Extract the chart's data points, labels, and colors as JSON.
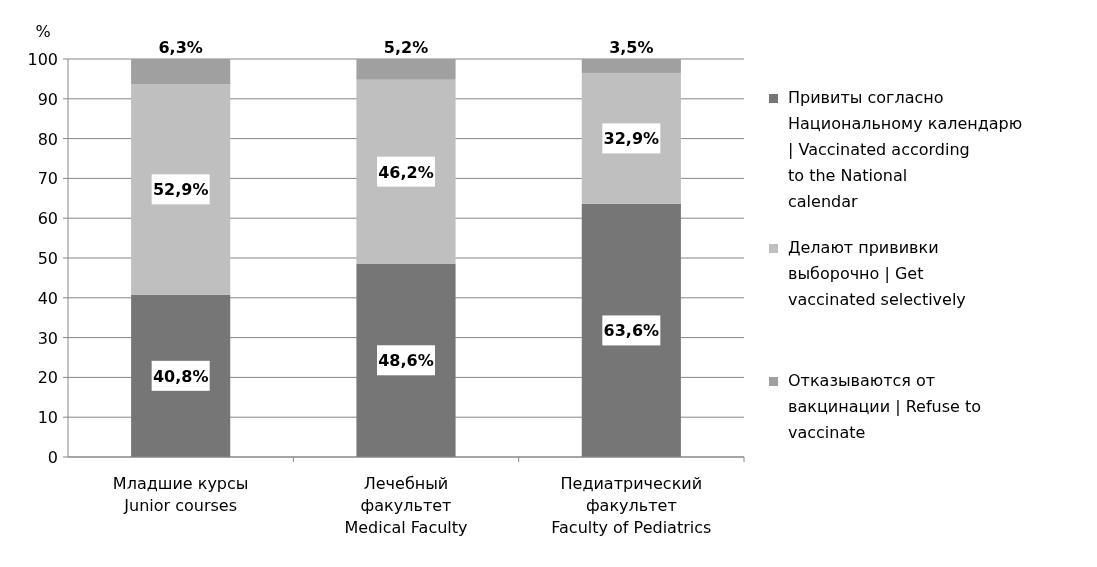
{
  "chart_data": {
    "type": "bar",
    "stacked": true,
    "ylabel": "%",
    "categories": [
      "Младшие курсы\nJunior courses",
      "Лечебный\nфакультет\nMedical Faculty",
      "Педиатрический\nфакультет\nFaculty of Pediatrics"
    ],
    "series": [
      {
        "name": "Привиты согласно Национальному календарю | Vaccinated according to the National calendar",
        "color": "#767676",
        "values": [
          40.8,
          48.6,
          63.6
        ],
        "value_labels": [
          "40,8%",
          "48,6%",
          "63,6%"
        ]
      },
      {
        "name": "Делают прививки выборочно | Get vaccinated selectively",
        "color": "#bfbfbf",
        "values": [
          52.9,
          46.2,
          32.9
        ],
        "value_labels": [
          "52,9%",
          "46,2%",
          "32,9%"
        ]
      },
      {
        "name": "Отказываются от вакцинации | Refuse to vaccinate",
        "color": "#a0a0a0",
        "values": [
          6.3,
          5.2,
          3.5
        ],
        "value_labels": [
          "6,3%",
          "5,2%",
          "3,5%"
        ]
      }
    ],
    "ylim": [
      0,
      100
    ],
    "yticks": [
      0,
      10,
      20,
      30,
      40,
      50,
      60,
      70,
      80,
      90,
      100
    ],
    "grid": "y",
    "legend": "right"
  }
}
